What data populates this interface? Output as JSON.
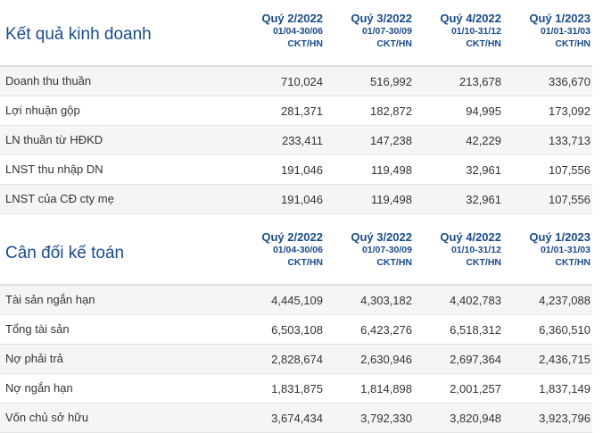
{
  "business": {
    "title": "Kết quả kinh doanh",
    "columns": [
      {
        "quarter": "Quý 2/2022",
        "dates": "01/04-30/06",
        "unit": "CKT/HN"
      },
      {
        "quarter": "Quý 3/2022",
        "dates": "01/07-30/09",
        "unit": "CKT/HN"
      },
      {
        "quarter": "Quý 4/2022",
        "dates": "01/10-31/12",
        "unit": "CKT/HN"
      },
      {
        "quarter": "Quý 1/2023",
        "dates": "01/01-31/03",
        "unit": "CKT/HN"
      }
    ],
    "rows": [
      {
        "label": "Doanh thu thuần",
        "values": [
          "710,024",
          "516,992",
          "213,678",
          "336,670"
        ]
      },
      {
        "label": "Lợi nhuận gộp",
        "values": [
          "281,371",
          "182,872",
          "94,995",
          "173,092"
        ]
      },
      {
        "label": "LN thuần từ HĐKD",
        "values": [
          "233,411",
          "147,238",
          "42,229",
          "133,713"
        ]
      },
      {
        "label": "LNST thu nhập DN",
        "values": [
          "191,046",
          "119,498",
          "32,961",
          "107,556"
        ]
      },
      {
        "label": "LNST của CĐ cty mẹ",
        "values": [
          "191,046",
          "119,498",
          "32,961",
          "107,556"
        ]
      }
    ]
  },
  "balance": {
    "title": "Cân đối kế toán",
    "columns": [
      {
        "quarter": "Quý 2/2022",
        "dates": "01/04-30/06",
        "unit": "CKT/HN"
      },
      {
        "quarter": "Quý 3/2022",
        "dates": "01/07-30/09",
        "unit": "CKT/HN"
      },
      {
        "quarter": "Quý 4/2022",
        "dates": "01/10-31/12",
        "unit": "CKT/HN"
      },
      {
        "quarter": "Quý 1/2023",
        "dates": "01/01-31/03",
        "unit": "CKT/HN"
      }
    ],
    "rows": [
      {
        "label": "Tài sản ngắn hạn",
        "values": [
          "4,445,109",
          "4,303,182",
          "4,402,783",
          "4,237,088"
        ]
      },
      {
        "label": "Tổng tài sản",
        "values": [
          "6,503,108",
          "6,423,276",
          "6,518,312",
          "6,360,510"
        ]
      },
      {
        "label": "Nợ phải trả",
        "values": [
          "2,828,674",
          "2,630,946",
          "2,697,364",
          "2,436,715"
        ]
      },
      {
        "label": "Nợ ngắn hạn",
        "values": [
          "1,831,875",
          "1,814,898",
          "2,001,257",
          "1,837,149"
        ]
      },
      {
        "label": "Vốn chủ sở hữu",
        "values": [
          "3,674,434",
          "3,792,330",
          "3,820,948",
          "3,923,796"
        ]
      }
    ]
  }
}
